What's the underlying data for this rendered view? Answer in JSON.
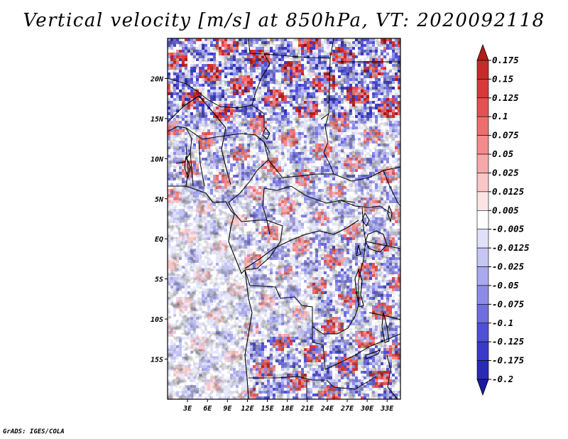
{
  "title": "Vertical velocity [m/s] at 850hPa, VT: 2020092118",
  "credit": "GrADS: IGES/COLA",
  "map": {
    "lon_range": [
      0,
      35
    ],
    "lat_range": [
      -20,
      25
    ],
    "lat_ticks": [
      {
        "value": 20,
        "label": "20N"
      },
      {
        "value": 15,
        "label": "15N"
      },
      {
        "value": 10,
        "label": "10N"
      },
      {
        "value": 5,
        "label": "5N"
      },
      {
        "value": 0,
        "label": "EQ"
      },
      {
        "value": -5,
        "label": "5S"
      },
      {
        "value": -10,
        "label": "10S"
      },
      {
        "value": -15,
        "label": "15S"
      }
    ],
    "lon_ticks": [
      {
        "value": 3,
        "label": "3E"
      },
      {
        "value": 6,
        "label": "6E"
      },
      {
        "value": 9,
        "label": "9E"
      },
      {
        "value": 12,
        "label": "12E"
      },
      {
        "value": 15,
        "label": "15E"
      },
      {
        "value": 18,
        "label": "18E"
      },
      {
        "value": 21,
        "label": "21E"
      },
      {
        "value": 24,
        "label": "24E"
      },
      {
        "value": 27,
        "label": "27E"
      },
      {
        "value": 30,
        "label": "30E"
      },
      {
        "value": 33,
        "label": "33E"
      }
    ]
  },
  "colorbar": {
    "labels": [
      "0.175",
      "0.15",
      "0.125",
      "0.1",
      "0.075",
      "0.05",
      "0.025",
      "0.0125",
      "0.005",
      "-0.005",
      "-0.0125",
      "-0.025",
      "-0.05",
      "-0.075",
      "-0.1",
      "-0.125",
      "-0.175",
      "-0.2"
    ],
    "colors": [
      "#b41b1b",
      "#c82a2a",
      "#d93838",
      "#e65050",
      "#ee6e6e",
      "#f38b8b",
      "#f7a8a8",
      "#fac6c6",
      "#fde3e3",
      "#ffffff",
      "#e0e0fa",
      "#c6c6f5",
      "#a9a9ef",
      "#8c8ce8",
      "#6e6ee0",
      "#5050d6",
      "#3a3ac8",
      "#2a2ab4",
      "#1a1a9e"
    ]
  }
}
